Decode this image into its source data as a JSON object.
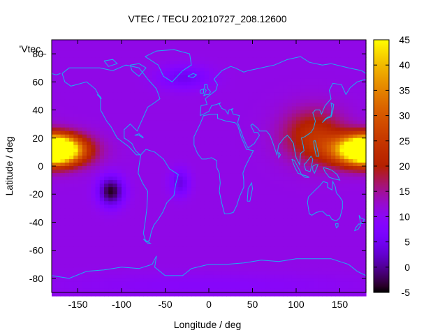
{
  "chart_data": {
    "type": "heatmap",
    "title": "VTEC / TECU 20210727_208.12600",
    "xlabel": "Longitude / deg",
    "ylabel": "Latitude / deg",
    "key_label": "'Vtec_",
    "xlim": [
      -180,
      180
    ],
    "ylim": [
      -90,
      90
    ],
    "x_ticks": [
      "-150",
      "-100",
      "-50",
      "0",
      "50",
      "100",
      "150"
    ],
    "y_ticks": [
      "-80",
      "-60",
      "-40",
      "-20",
      "0",
      "20",
      "40",
      "60",
      "80"
    ],
    "colorbar": {
      "range": [
        -5,
        45
      ],
      "ticks": [
        "-5",
        "0",
        "5",
        "10",
        "15",
        "20",
        "25",
        "30",
        "35",
        "40",
        "45"
      ],
      "palette": "gnuplot rgbformulae 7,5,15"
    },
    "grid_lon_step": 5,
    "grid_lat_step": 2.5,
    "background_value": 11,
    "features": [
      {
        "name": "peak-pacific-east",
        "lon": -177,
        "lat": 12,
        "value": 38,
        "sx": 26,
        "sy": 9
      },
      {
        "name": "peak-pacific-west",
        "lon": 178,
        "lat": 11,
        "value": 31,
        "sx": 40,
        "sy": 11
      },
      {
        "name": "asia-enhancement",
        "lon": 120,
        "lat": 22,
        "value": 12,
        "sx": 35,
        "sy": 18
      },
      {
        "name": "depletion-south-pacific",
        "lon": -112,
        "lat": -18,
        "value": -15,
        "sx": 14,
        "sy": 10
      },
      {
        "name": "depletion-south-atlantic",
        "lon": -33,
        "lat": -12,
        "value": -7,
        "sx": 11,
        "sy": 9
      },
      {
        "name": "depletion-siberia",
        "lon": -28,
        "lat": 63,
        "value": -6,
        "sx": 28,
        "sy": 8
      },
      {
        "name": "polar-south",
        "lon": 0,
        "lat": -85,
        "value": -2,
        "sx": 180,
        "sy": 8
      }
    ]
  }
}
